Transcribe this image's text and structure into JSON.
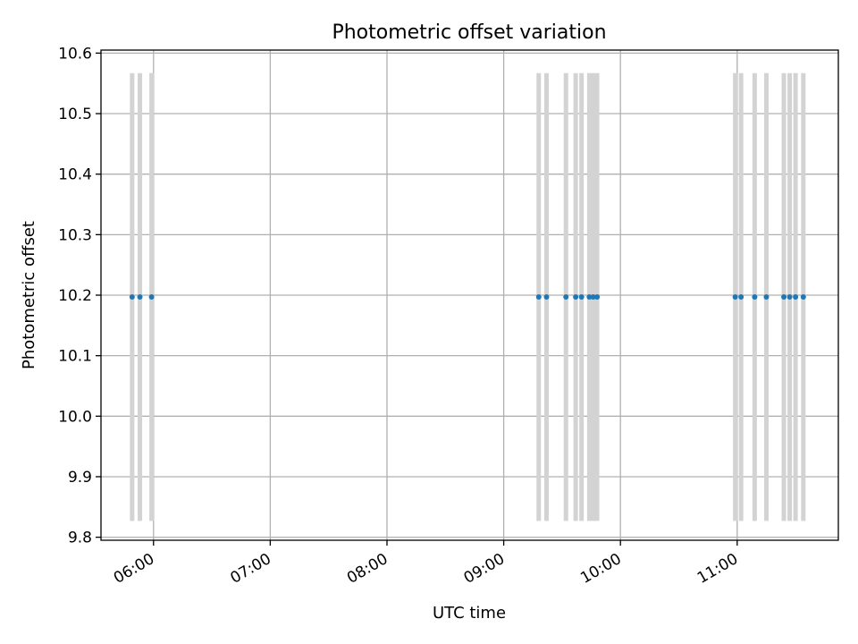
{
  "chart_data": {
    "type": "scatter",
    "title": "Photometric offset variation",
    "xlabel": "UTC time",
    "ylabel": "Photometric offset",
    "xlim": [
      "05:33",
      "11:52"
    ],
    "ylim": [
      9.795,
      10.605
    ],
    "x_ticks": [
      "06:00",
      "07:00",
      "08:00",
      "09:00",
      "10:00",
      "11:00"
    ],
    "y_ticks": [
      "9.8",
      "9.9",
      "10.0",
      "10.1",
      "10.2",
      "10.3",
      "10.4",
      "10.5",
      "10.6"
    ],
    "grid": true,
    "series": [
      {
        "marker_color": "#1f77b4",
        "errorbar_color": "#d3d3d3",
        "error": 0.37,
        "points": [
          {
            "x": "05:49",
            "y": 10.197
          },
          {
            "x": "05:53",
            "y": 10.197
          },
          {
            "x": "05:59",
            "y": 10.197
          },
          {
            "x": "09:18",
            "y": 10.197
          },
          {
            "x": "09:22",
            "y": 10.197
          },
          {
            "x": "09:32",
            "y": 10.197
          },
          {
            "x": "09:37",
            "y": 10.197
          },
          {
            "x": "09:40",
            "y": 10.197
          },
          {
            "x": "09:44",
            "y": 10.197
          },
          {
            "x": "09:46",
            "y": 10.197
          },
          {
            "x": "09:48",
            "y": 10.197
          },
          {
            "x": "10:59",
            "y": 10.197
          },
          {
            "x": "11:02",
            "y": 10.197
          },
          {
            "x": "11:09",
            "y": 10.197
          },
          {
            "x": "11:15",
            "y": 10.197
          },
          {
            "x": "11:24",
            "y": 10.197
          },
          {
            "x": "11:27",
            "y": 10.197
          },
          {
            "x": "11:30",
            "y": 10.197
          },
          {
            "x": "11:34",
            "y": 10.197
          }
        ]
      }
    ]
  }
}
